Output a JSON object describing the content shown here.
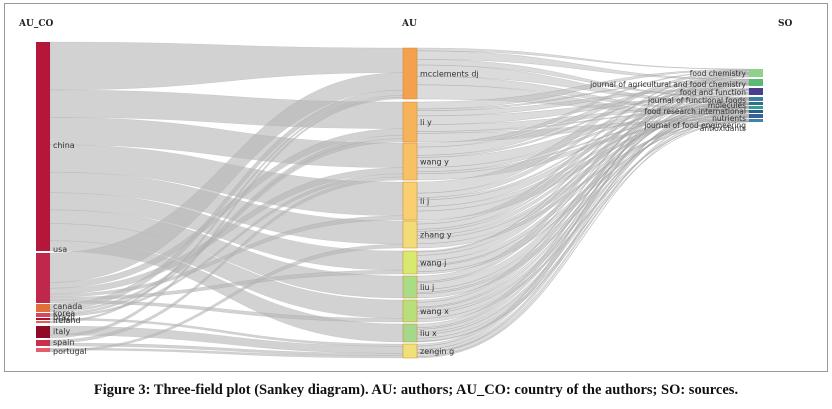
{
  "columns": {
    "au_co": "AU_CO",
    "au": "AU",
    "so": "SO"
  },
  "countries": [
    {
      "label": "china",
      "color": "#b5173a"
    },
    {
      "label": "usa",
      "color": "#c0284b"
    },
    {
      "label": "canada",
      "color": "#e0703a"
    },
    {
      "label": "korea",
      "color": "#d9455f"
    },
    {
      "label": "brazil",
      "color": "#a8102e"
    },
    {
      "label": "ireland",
      "color": "#e85a4a"
    },
    {
      "label": "italy",
      "color": "#8f0a27"
    },
    {
      "label": "spain",
      "color": "#c9304b"
    },
    {
      "label": "portugal",
      "color": "#e35d6a"
    }
  ],
  "authors": [
    {
      "label": "mcclements dj",
      "color": "#f5a04c"
    },
    {
      "label": "li y",
      "color": "#f7b35a"
    },
    {
      "label": "wang y",
      "color": "#f8c165"
    },
    {
      "label": "li j",
      "color": "#f9cf72"
    },
    {
      "label": "zhang y",
      "color": "#f3dc78"
    },
    {
      "label": "wang j",
      "color": "#d7ea6e"
    },
    {
      "label": "liu j",
      "color": "#a9dc85"
    },
    {
      "label": "wang x",
      "color": "#b7e07a"
    },
    {
      "label": "liu x",
      "color": "#a4d98c"
    },
    {
      "label": "zengin g",
      "color": "#f0e07a"
    }
  ],
  "sources": [
    {
      "label": "food chemistry",
      "color": "#8fd18a"
    },
    {
      "label": "journal of agricultural and food chemistry",
      "color": "#5cb876"
    },
    {
      "label": "food and function",
      "color": "#4a3f8f"
    },
    {
      "label": "journal of functional foods",
      "color": "#3d7fa3"
    },
    {
      "label": "molecules",
      "color": "#2f6f8a"
    },
    {
      "label": "food research international",
      "color": "#33a08c"
    },
    {
      "label": "nutrients",
      "color": "#2a5f8f"
    },
    {
      "label": "journal of food engineering",
      "color": "#3b5f9a"
    },
    {
      "label": "antioxidants",
      "color": "#3d86a8"
    }
  ],
  "caption": "Figure 3: Three-field plot (Sankey diagram). AU: authors; AU_CO: country of the authors; SO: sources."
}
